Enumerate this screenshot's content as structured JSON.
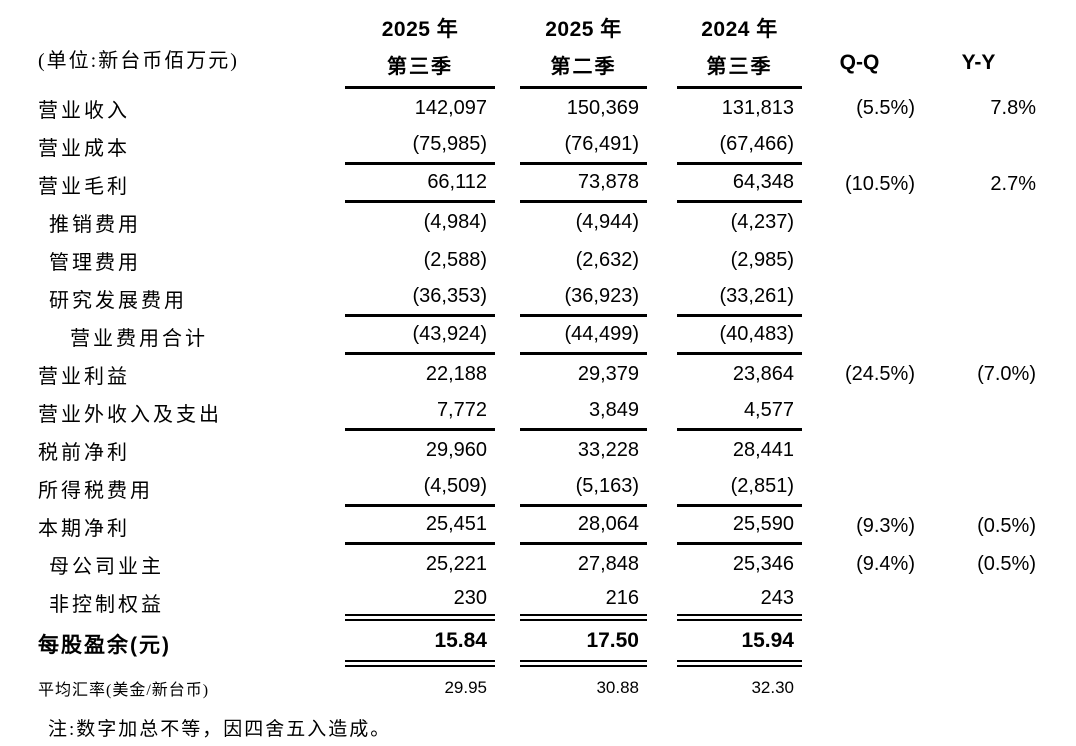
{
  "table": {
    "unit_label": "(单位:新台币佰万元)",
    "columns": [
      {
        "year": "2025 年",
        "quarter": "第三季"
      },
      {
        "year": "2025 年",
        "quarter": "第二季"
      },
      {
        "year": "2024 年",
        "quarter": "第三季"
      }
    ],
    "qq_label": "Q-Q",
    "yy_label": "Y-Y",
    "rows": [
      {
        "label": "营业收入",
        "v1": "142,097",
        "v2": "150,369",
        "v3": "131,813",
        "qq": "(5.5%)",
        "yy": "7.8%"
      },
      {
        "label": "营业成本",
        "v1": "(75,985)",
        "v2": "(76,491)",
        "v3": "(67,466)",
        "qq": "",
        "yy": ""
      },
      {
        "label": "营业毛利",
        "v1": "66,112",
        "v2": "73,878",
        "v3": "64,348",
        "qq": "(10.5%)",
        "yy": "2.7%"
      },
      {
        "label": "推销费用",
        "v1": "(4,984)",
        "v2": "(4,944)",
        "v3": "(4,237)",
        "qq": "",
        "yy": ""
      },
      {
        "label": "管理费用",
        "v1": "(2,588)",
        "v2": "(2,632)",
        "v3": "(2,985)",
        "qq": "",
        "yy": ""
      },
      {
        "label": "研究发展费用",
        "v1": "(36,353)",
        "v2": "(36,923)",
        "v3": "(33,261)",
        "qq": "",
        "yy": ""
      },
      {
        "label": "营业费用合计",
        "v1": "(43,924)",
        "v2": "(44,499)",
        "v3": "(40,483)",
        "qq": "",
        "yy": ""
      },
      {
        "label": "营业利益",
        "v1": "22,188",
        "v2": "29,379",
        "v3": "23,864",
        "qq": "(24.5%)",
        "yy": "(7.0%)"
      },
      {
        "label": "营业外收入及支出",
        "v1": "7,772",
        "v2": "3,849",
        "v3": "4,577",
        "qq": "",
        "yy": ""
      },
      {
        "label": "税前净利",
        "v1": "29,960",
        "v2": "33,228",
        "v3": "28,441",
        "qq": "",
        "yy": ""
      },
      {
        "label": "所得税费用",
        "v1": "(4,509)",
        "v2": "(5,163)",
        "v3": "(2,851)",
        "qq": "",
        "yy": ""
      },
      {
        "label": "本期净利",
        "v1": "25,451",
        "v2": "28,064",
        "v3": "25,590",
        "qq": "(9.3%)",
        "yy": "(0.5%)"
      },
      {
        "label": "母公司业主",
        "v1": "25,221",
        "v2": "27,848",
        "v3": "25,346",
        "qq": "(9.4%)",
        "yy": "(0.5%)"
      },
      {
        "label": "非控制权益",
        "v1": "230",
        "v2": "216",
        "v3": "243",
        "qq": "",
        "yy": ""
      },
      {
        "label": "每股盈余(元)",
        "v1": "15.84",
        "v2": "17.50",
        "v3": "15.94",
        "qq": "",
        "yy": ""
      },
      {
        "label": "平均汇率(美金/新台币)",
        "v1": "29.95",
        "v2": "30.88",
        "v3": "32.30",
        "qq": "",
        "yy": ""
      }
    ],
    "note": "注:数字加总不等，因四舍五入造成。"
  }
}
